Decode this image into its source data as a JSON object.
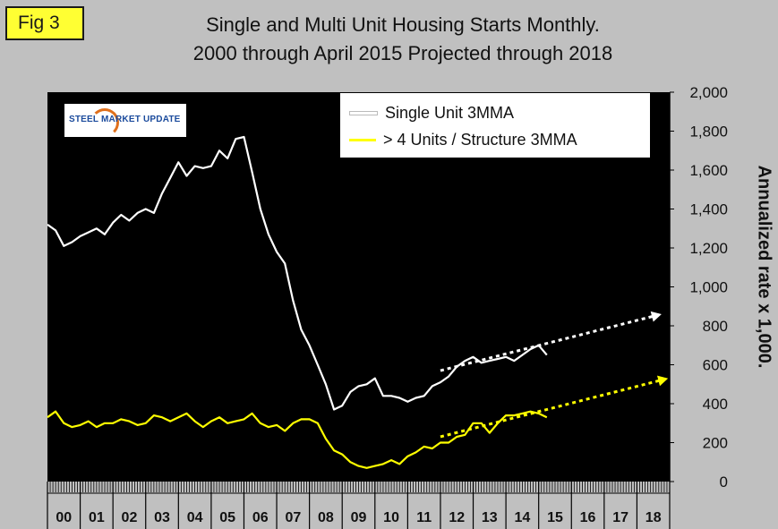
{
  "figure": {
    "badge": "Fig 3",
    "title_line1": "Single and Multi Unit Housing Starts Monthly.",
    "title_line2": "2000 through April 2015 Projected through 2018",
    "logo_text": "STEEL MARKET UPDATE"
  },
  "colors": {
    "background": "#c0c0c0",
    "plot_background": "#000000",
    "single_unit": "#ffffff",
    "multi_unit": "#ffff00",
    "badge": "#ffff33"
  },
  "chart_data": {
    "type": "line",
    "title": "Single and Multi Unit Housing Starts Monthly. 2000 through April 2015 Projected through 2018",
    "ylabel": "Annualized rate x 1,000.",
    "xlabel": "",
    "ylim": [
      0,
      2000
    ],
    "yticks": [
      0,
      200,
      400,
      600,
      800,
      1000,
      1200,
      1400,
      1600,
      1800,
      2000
    ],
    "ytick_labels": [
      "0",
      "200",
      "400",
      "600",
      "800",
      "1,000",
      "1,200",
      "1,400",
      "1,600",
      "1,800",
      "2,000"
    ],
    "xlim": [
      2000,
      2019
    ],
    "x_category_labels": [
      "00",
      "01",
      "02",
      "03",
      "04",
      "05",
      "06",
      "07",
      "08",
      "09",
      "10",
      "11",
      "12",
      "13",
      "14",
      "15",
      "16",
      "17",
      "18"
    ],
    "grid": false,
    "legend_position": "top-right",
    "series": [
      {
        "name": "Single Unit 3MMA",
        "color": "#ffffff",
        "x": [
          2000.0,
          2000.25,
          2000.5,
          2000.75,
          2001.0,
          2001.25,
          2001.5,
          2001.75,
          2002.0,
          2002.25,
          2002.5,
          2002.75,
          2003.0,
          2003.25,
          2003.5,
          2003.75,
          2004.0,
          2004.25,
          2004.5,
          2004.75,
          2005.0,
          2005.25,
          2005.5,
          2005.75,
          2006.0,
          2006.25,
          2006.5,
          2006.75,
          2007.0,
          2007.25,
          2007.5,
          2007.75,
          2008.0,
          2008.25,
          2008.5,
          2008.75,
          2009.0,
          2009.25,
          2009.5,
          2009.75,
          2010.0,
          2010.25,
          2010.5,
          2010.75,
          2011.0,
          2011.25,
          2011.5,
          2011.75,
          2012.0,
          2012.25,
          2012.5,
          2012.75,
          2013.0,
          2013.25,
          2013.5,
          2013.75,
          2014.0,
          2014.25,
          2014.5,
          2014.75,
          2015.0,
          2015.25
        ],
        "values": [
          1320,
          1290,
          1210,
          1230,
          1260,
          1280,
          1300,
          1270,
          1330,
          1370,
          1340,
          1380,
          1400,
          1380,
          1480,
          1560,
          1640,
          1570,
          1620,
          1610,
          1620,
          1700,
          1660,
          1760,
          1770,
          1590,
          1400,
          1270,
          1180,
          1120,
          930,
          780,
          700,
          600,
          500,
          370,
          390,
          460,
          490,
          500,
          530,
          440,
          440,
          430,
          410,
          430,
          440,
          490,
          510,
          540,
          590,
          620,
          640,
          610,
          620,
          630,
          640,
          620,
          650,
          680,
          700,
          650
        ],
        "trend": {
          "x": [
            2012.0,
            2018.75
          ],
          "values": [
            570,
            860
          ]
        }
      },
      {
        "name": "> 4 Units / Structure 3MMA",
        "color": "#ffff00",
        "x": [
          2000.0,
          2000.25,
          2000.5,
          2000.75,
          2001.0,
          2001.25,
          2001.5,
          2001.75,
          2002.0,
          2002.25,
          2002.5,
          2002.75,
          2003.0,
          2003.25,
          2003.5,
          2003.75,
          2004.0,
          2004.25,
          2004.5,
          2004.75,
          2005.0,
          2005.25,
          2005.5,
          2005.75,
          2006.0,
          2006.25,
          2006.5,
          2006.75,
          2007.0,
          2007.25,
          2007.5,
          2007.75,
          2008.0,
          2008.25,
          2008.5,
          2008.75,
          2009.0,
          2009.25,
          2009.5,
          2009.75,
          2010.0,
          2010.25,
          2010.5,
          2010.75,
          2011.0,
          2011.25,
          2011.5,
          2011.75,
          2012.0,
          2012.25,
          2012.5,
          2012.75,
          2013.0,
          2013.25,
          2013.5,
          2013.75,
          2014.0,
          2014.25,
          2014.5,
          2014.75,
          2015.0,
          2015.25
        ],
        "values": [
          330,
          360,
          300,
          280,
          290,
          310,
          280,
          300,
          300,
          320,
          310,
          290,
          300,
          340,
          330,
          310,
          330,
          350,
          310,
          280,
          310,
          330,
          300,
          310,
          320,
          350,
          300,
          280,
          290,
          260,
          300,
          320,
          320,
          300,
          220,
          160,
          140,
          100,
          80,
          70,
          80,
          90,
          110,
          90,
          130,
          150,
          180,
          170,
          200,
          200,
          230,
          240,
          300,
          300,
          250,
          300,
          340,
          340,
          350,
          360,
          350,
          330
        ],
        "trend": {
          "x": [
            2012.0,
            2018.95
          ],
          "values": [
            230,
            530
          ]
        }
      }
    ]
  }
}
